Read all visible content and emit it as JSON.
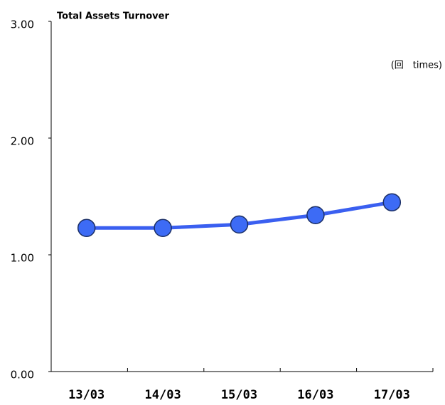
{
  "chart_data": {
    "type": "line",
    "title": "Total Assets Turnover",
    "unit_label": "(回　times)",
    "categories": [
      "13/03",
      "14/03",
      "15/03",
      "16/03",
      "17/03"
    ],
    "series": [
      {
        "name": "Total Assets Turnover",
        "color": "#3a5ff0",
        "values": [
          1.23,
          1.23,
          1.26,
          1.34,
          1.45
        ]
      }
    ],
    "ylim": [
      0,
      3
    ],
    "yticks": [
      {
        "value": 0,
        "label": "0.00"
      },
      {
        "value": 1,
        "label": "1.00"
      },
      {
        "value": 2,
        "label": "2.00"
      },
      {
        "value": 3,
        "label": "3.00"
      }
    ]
  }
}
